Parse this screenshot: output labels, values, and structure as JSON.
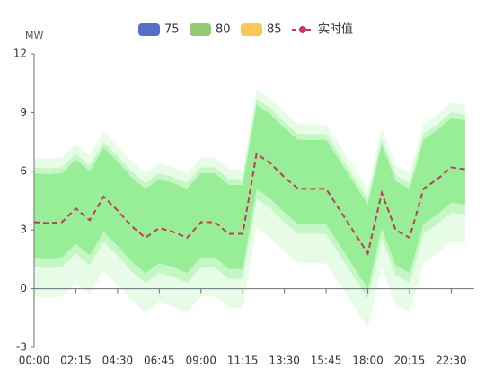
{
  "chart_data": {
    "type": "band-line",
    "y_axis_name": "MW",
    "categories": [
      "00:00",
      null,
      null,
      "02:15",
      null,
      null,
      "04:30",
      null,
      null,
      "06:45",
      null,
      null,
      "09:00",
      null,
      null,
      "11:15",
      null,
      null,
      "13:30",
      null,
      null,
      "15:45",
      null,
      null,
      "18:00",
      null,
      null,
      "20:15",
      null,
      null,
      "22:30",
      null
    ],
    "ylim": [
      -3,
      12
    ],
    "yticks": [
      -3,
      0,
      3,
      6,
      9,
      12
    ],
    "bands": [
      {
        "name": "85",
        "color": "#fac858",
        "area_color": "#e6fce6",
        "upper": [
          6.7,
          6.65,
          6.7,
          7.4,
          6.8,
          8.0,
          7.3,
          6.5,
          5.9,
          6.4,
          6.2,
          5.9,
          6.7,
          6.7,
          6.1,
          6.1,
          10.2,
          9.7,
          9.0,
          8.4,
          8.4,
          8.4,
          7.3,
          6.2,
          5.1,
          8.2,
          6.3,
          5.9,
          8.4,
          8.9,
          9.5,
          9.4
        ],
        "lower": [
          -0.4,
          -0.45,
          -0.4,
          0.3,
          -0.3,
          0.9,
          0.2,
          -0.6,
          -1.2,
          -0.7,
          -0.9,
          -1.2,
          -0.4,
          -0.4,
          -1.0,
          -1.0,
          3.1,
          2.6,
          1.9,
          1.3,
          1.3,
          1.3,
          0.2,
          -0.9,
          -2.0,
          1.1,
          -0.8,
          -1.2,
          1.3,
          1.8,
          2.4,
          2.3
        ]
      },
      {
        "name": "80",
        "color": "#91cc75",
        "area_color": "#c4f7c4",
        "upper": [
          6.2,
          6.15,
          6.2,
          6.9,
          6.3,
          7.5,
          6.8,
          6.0,
          5.4,
          5.9,
          5.7,
          5.4,
          6.2,
          6.2,
          5.6,
          5.6,
          9.7,
          9.2,
          8.5,
          7.9,
          7.9,
          7.9,
          6.8,
          5.7,
          4.6,
          7.7,
          5.8,
          5.4,
          7.9,
          8.4,
          9.0,
          8.9
        ],
        "lower": [
          1.1,
          1.05,
          1.1,
          1.8,
          1.2,
          2.4,
          1.7,
          0.9,
          0.3,
          0.8,
          0.6,
          0.3,
          1.1,
          1.1,
          0.5,
          0.5,
          4.6,
          4.1,
          3.4,
          2.8,
          2.8,
          2.8,
          1.7,
          0.6,
          -0.5,
          2.6,
          0.7,
          0.3,
          2.8,
          3.3,
          3.9,
          3.8
        ]
      },
      {
        "name": "75",
        "color": "#5470c6",
        "area_color": "#97ee97",
        "upper": [
          5.9,
          5.85,
          5.9,
          6.6,
          6.0,
          7.2,
          6.5,
          5.7,
          5.1,
          5.6,
          5.4,
          5.1,
          5.9,
          5.9,
          5.3,
          5.3,
          9.4,
          8.9,
          8.2,
          7.6,
          7.6,
          7.6,
          6.5,
          5.4,
          4.3,
          7.4,
          5.5,
          5.1,
          7.6,
          8.1,
          8.7,
          8.6
        ],
        "lower": [
          1.6,
          1.55,
          1.6,
          2.3,
          1.7,
          2.9,
          2.2,
          1.4,
          0.8,
          1.3,
          1.1,
          0.8,
          1.6,
          1.6,
          1.0,
          1.0,
          5.1,
          4.6,
          3.9,
          3.3,
          3.3,
          3.3,
          2.2,
          1.1,
          0,
          3.1,
          1.2,
          0.8,
          3.3,
          3.8,
          4.4,
          4.3
        ]
      }
    ],
    "series": [
      {
        "name": "实时值",
        "color": "#c23a5c",
        "values": [
          3.4,
          3.35,
          3.4,
          4.1,
          3.5,
          4.7,
          4.0,
          3.2,
          2.6,
          3.1,
          2.9,
          2.6,
          3.4,
          3.4,
          2.8,
          2.8,
          6.9,
          6.4,
          5.7,
          5.1,
          5.1,
          5.1,
          4.0,
          2.9,
          1.8,
          4.9,
          3.0,
          2.6,
          5.1,
          5.6,
          6.2,
          6.1
        ]
      }
    ]
  }
}
